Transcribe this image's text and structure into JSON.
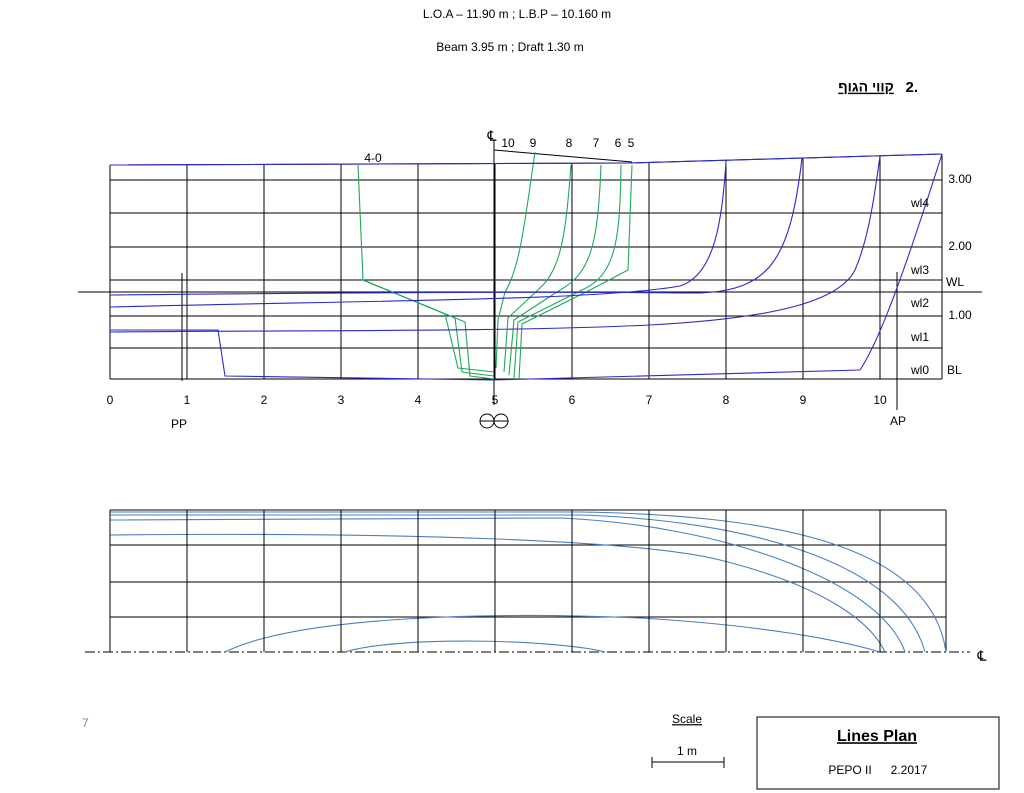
{
  "header": {
    "line1": "L.O.A – 11.90 m  ;  L.B.P – 10.160 m",
    "line2": "Beam 3.95 m ; Draft 1.30 m"
  },
  "section": {
    "number": "2.",
    "title": "קווי הגוף"
  },
  "profile": {
    "stations": [
      "0",
      "1",
      "2",
      "3",
      "4",
      "5",
      "6",
      "7",
      "8",
      "9",
      "10"
    ],
    "heights": [
      "3.00",
      "2.00",
      "1.00"
    ],
    "waterlines": [
      "wl4",
      "wl3",
      "wl2",
      "wl1",
      "wl0"
    ],
    "wl": "WL",
    "bl": "BL",
    "pp": "PP",
    "ap": "AP",
    "centerline": "℄",
    "body_stations": [
      "10",
      "9",
      "8",
      "7",
      "6",
      "5"
    ],
    "body_station_aft": "4-0"
  },
  "plan": {
    "centerline": "℄"
  },
  "footer": {
    "page": "7",
    "scale": "Scale",
    "scale_length": "1 m"
  },
  "title_block": {
    "title": "Lines Plan",
    "project": "PEPO II",
    "date": "2.2017"
  }
}
